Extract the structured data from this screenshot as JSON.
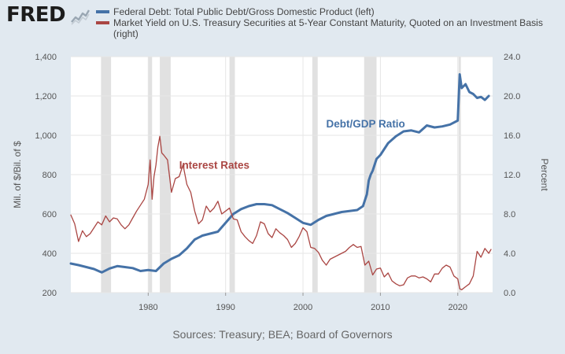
{
  "header": {
    "logo_text": "FRED",
    "logo_icon": "line-chart-icon"
  },
  "legend": [
    {
      "label": "Federal Debt: Total Public Debt/Gross Domestic Product (left)",
      "color": "#4572a7"
    },
    {
      "label": "Market Yield on U.S. Treasury Securities at 5-Year Constant Maturity, Quoted on an Investment Basis (right)",
      "color": "#aa4643"
    }
  ],
  "source": "Sources: Treasury; BEA; Board of Governors",
  "chart_data": {
    "type": "line",
    "title": "",
    "xlabel": "",
    "ylabel": "Mil. of $/Bil. of $",
    "ylabel_right": "Percent",
    "xlim": [
      1970,
      2024.5
    ],
    "ylim": [
      200,
      1400
    ],
    "ylim_right": [
      0,
      24
    ],
    "x_ticks": [
      "1980",
      "1990",
      "2000",
      "2010",
      "2020"
    ],
    "y_ticks_left": [
      "200",
      "400",
      "600",
      "800",
      "1,000",
      "1,200",
      "1,400"
    ],
    "y_ticks_right": [
      "0.0",
      "4.0",
      "8.0",
      "12.0",
      "16.0",
      "20.0",
      "24.0"
    ],
    "grid": true,
    "recessions": [
      [
        1973.9,
        1975.2
      ],
      [
        1980.0,
        1980.5
      ],
      [
        1981.5,
        1982.9
      ],
      [
        1990.5,
        1991.2
      ],
      [
        2001.2,
        2001.9
      ],
      [
        2007.9,
        2009.5
      ],
      [
        2020.1,
        2020.4
      ]
    ],
    "annotations": [
      {
        "text": "Debt/GDP Ratio",
        "color": "#4572a7",
        "x": 2003,
        "y": 1040,
        "axis": "left"
      },
      {
        "text": "Interest Rates",
        "color": "#aa4643",
        "x": 1984,
        "y": 12.6,
        "axis": "right"
      }
    ],
    "series": [
      {
        "name": "Federal Debt: Total Public Debt/Gross Domestic Product",
        "axis": "left",
        "color": "#4572a7",
        "x": [
          1970,
          1971,
          1972,
          1973,
          1974,
          1975,
          1976,
          1977,
          1978,
          1979,
          1980,
          1981,
          1982,
          1983,
          1984,
          1985,
          1986,
          1987,
          1988,
          1989,
          1990,
          1991,
          1992,
          1993,
          1994,
          1995,
          1996,
          1997,
          1998,
          1999,
          2000,
          2001,
          2002,
          2003,
          2004,
          2005,
          2006,
          2007,
          2007.75,
          2008.25,
          2008.5,
          2008.75,
          2009,
          2009.5,
          2010,
          2011,
          2012,
          2013,
          2014,
          2015,
          2016,
          2017,
          2018,
          2019,
          2019.75,
          2020,
          2020.25,
          2020.5,
          2021,
          2021.5,
          2022,
          2022.5,
          2023,
          2023.5,
          2024
        ],
        "values": [
          348,
          340,
          330,
          320,
          303,
          323,
          335,
          330,
          325,
          310,
          315,
          310,
          348,
          372,
          390,
          425,
          470,
          490,
          500,
          510,
          555,
          600,
          625,
          640,
          650,
          650,
          645,
          625,
          605,
          580,
          555,
          545,
          570,
          590,
          600,
          610,
          615,
          620,
          640,
          700,
          770,
          800,
          820,
          880,
          900,
          960,
          995,
          1020,
          1025,
          1015,
          1050,
          1040,
          1045,
          1055,
          1070,
          1075,
          1310,
          1240,
          1260,
          1220,
          1210,
          1190,
          1195,
          1180,
          1200
        ]
      },
      {
        "name": "Market Yield on U.S. Treasury Securities at 5-Year Constant Maturity",
        "axis": "right",
        "color": "#aa4643",
        "x": [
          1970,
          1970.5,
          1971,
          1971.5,
          1972,
          1972.5,
          1973,
          1973.5,
          1974,
          1974.5,
          1975,
          1975.5,
          1976,
          1976.5,
          1977,
          1977.5,
          1978,
          1978.5,
          1979,
          1979.5,
          1980,
          1980.25,
          1980.5,
          1980.75,
          1981,
          1981.25,
          1981.5,
          1981.75,
          1982,
          1982.5,
          1983,
          1983.5,
          1984,
          1984.5,
          1985,
          1985.5,
          1986,
          1986.5,
          1987,
          1987.5,
          1988,
          1988.5,
          1989,
          1989.5,
          1990,
          1990.5,
          1991,
          1991.5,
          1992,
          1992.5,
          1993,
          1993.5,
          1994,
          1994.5,
          1995,
          1995.5,
          1996,
          1996.5,
          1997,
          1997.5,
          1998,
          1998.5,
          1999,
          1999.5,
          2000,
          2000.5,
          2001,
          2001.5,
          2002,
          2002.5,
          2003,
          2003.5,
          2004,
          2004.5,
          2005,
          2005.5,
          2006,
          2006.5,
          2007,
          2007.5,
          2008,
          2008.5,
          2009,
          2009.5,
          2010,
          2010.5,
          2011,
          2011.5,
          2012,
          2012.5,
          2013,
          2013.5,
          2014,
          2014.5,
          2015,
          2015.5,
          2016,
          2016.5,
          2017,
          2017.5,
          2018,
          2018.5,
          2019,
          2019.5,
          2020,
          2020.25,
          2020.5,
          2021,
          2021.5,
          2022,
          2022.5,
          2023,
          2023.5,
          2024,
          2024.3
        ],
        "values": [
          7.9,
          7.0,
          5.2,
          6.3,
          5.7,
          6.0,
          6.6,
          7.2,
          6.9,
          7.8,
          7.2,
          7.6,
          7.5,
          6.9,
          6.5,
          6.9,
          7.6,
          8.3,
          8.9,
          9.5,
          11.0,
          13.5,
          9.5,
          11.8,
          13.0,
          14.8,
          15.9,
          14.2,
          14.0,
          13.5,
          10.2,
          11.6,
          11.8,
          13.0,
          11.0,
          10.2,
          8.3,
          7.0,
          7.4,
          8.8,
          8.2,
          8.6,
          9.3,
          8.0,
          8.3,
          8.6,
          7.5,
          7.4,
          6.2,
          5.7,
          5.3,
          5.0,
          5.8,
          7.2,
          7.0,
          6.0,
          5.6,
          6.5,
          6.1,
          5.8,
          5.4,
          4.6,
          5.0,
          5.7,
          6.6,
          6.2,
          4.6,
          4.5,
          4.1,
          3.3,
          2.8,
          3.4,
          3.6,
          3.8,
          4.0,
          4.2,
          4.6,
          4.9,
          4.6,
          4.7,
          2.8,
          3.2,
          1.8,
          2.4,
          2.5,
          1.6,
          2.0,
          1.2,
          0.9,
          0.7,
          0.8,
          1.5,
          1.7,
          1.7,
          1.5,
          1.6,
          1.4,
          1.1,
          1.9,
          1.9,
          2.5,
          2.8,
          2.6,
          1.7,
          1.4,
          0.4,
          0.3,
          0.6,
          0.9,
          1.7,
          4.2,
          3.6,
          4.5,
          4.0,
          4.4
        ]
      }
    ]
  }
}
